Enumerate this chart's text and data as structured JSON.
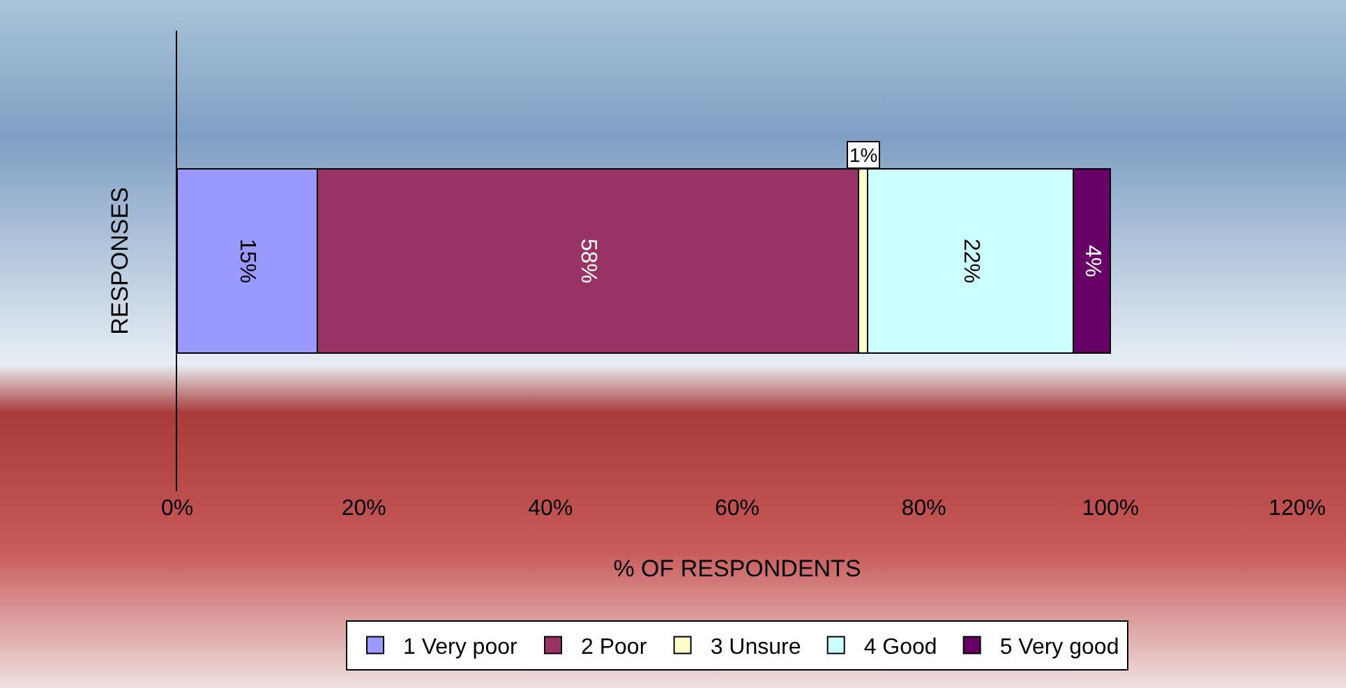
{
  "chart_data": {
    "type": "bar",
    "orientation": "horizontal",
    "stacked": true,
    "categories": [
      null
    ],
    "series": [
      {
        "name": "1 Very poor",
        "color": "#9999ff",
        "values": [
          15
        ],
        "value_labels": [
          "15%"
        ]
      },
      {
        "name": "2 Poor",
        "color": "#993366",
        "values": [
          58
        ],
        "value_labels": [
          "58%"
        ]
      },
      {
        "name": "3 Unsure",
        "color": "#ffffcc",
        "values": [
          1
        ],
        "value_labels": [
          "1%"
        ]
      },
      {
        "name": "4 Good",
        "color": "#ccffff",
        "values": [
          22
        ],
        "value_labels": [
          "22%"
        ]
      },
      {
        "name": "5 Very good",
        "color": "#660066",
        "values": [
          4
        ],
        "value_labels": [
          "4%"
        ]
      }
    ],
    "xlabel": "% OF RESPONDENTS",
    "ylabel": "RESPONSES",
    "xlim": [
      0,
      120
    ],
    "xticks": [
      {
        "value": 0,
        "label": "0%"
      },
      {
        "value": 20,
        "label": "20%"
      },
      {
        "value": 40,
        "label": "40%"
      },
      {
        "value": 60,
        "label": "60%"
      },
      {
        "value": 80,
        "label": "80%"
      },
      {
        "value": 100,
        "label": "100%"
      },
      {
        "value": 120,
        "label": "120%"
      }
    ],
    "legend": "bottom",
    "grid": false,
    "tick_labels": "x"
  }
}
